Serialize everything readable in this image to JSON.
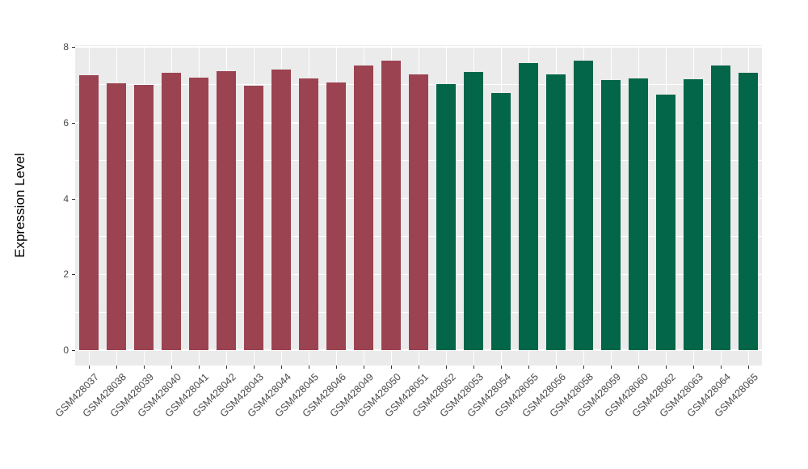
{
  "chart_data": {
    "type": "bar",
    "title": "",
    "xlabel": "",
    "ylabel": "Expression Level",
    "ylim": [
      0,
      8
    ],
    "yticks": [
      0,
      2,
      4,
      6,
      8
    ],
    "yticks_minor": [
      1,
      3,
      5,
      7
    ],
    "grid": "on",
    "legend": "none",
    "categories": [
      "GSM428037",
      "GSM428038",
      "GSM428039",
      "GSM428040",
      "GSM428041",
      "GSM428042",
      "GSM428043",
      "GSM428044",
      "GSM428045",
      "GSM428046",
      "GSM428049",
      "GSM428050",
      "GSM428051",
      "GSM428052",
      "GSM428053",
      "GSM428054",
      "GSM428055",
      "GSM428056",
      "GSM428058",
      "GSM428059",
      "GSM428060",
      "GSM428062",
      "GSM428063",
      "GSM428064",
      "GSM428065"
    ],
    "values": [
      7.26,
      7.05,
      7.0,
      7.31,
      7.2,
      7.37,
      6.98,
      7.4,
      7.16,
      7.06,
      7.51,
      7.64,
      7.28,
      7.01,
      7.33,
      6.78,
      7.57,
      7.27,
      7.64,
      7.12,
      7.17,
      6.75,
      7.15,
      7.5,
      7.32
    ],
    "bar_groups": [
      "group1",
      "group1",
      "group1",
      "group1",
      "group1",
      "group1",
      "group1",
      "group1",
      "group1",
      "group1",
      "group1",
      "group1",
      "group1",
      "group2",
      "group2",
      "group2",
      "group2",
      "group2",
      "group2",
      "group2",
      "group2",
      "group2",
      "group2",
      "group2",
      "group2"
    ],
    "colors": {
      "group1": "#9C4351",
      "group2": "#036648",
      "panel_background": "#EBEBEB",
      "gridline": "#FFFFFF",
      "tick_mark": "#333333",
      "tick_text": "#4a4a4a",
      "axis_title_text": "#000000"
    }
  }
}
